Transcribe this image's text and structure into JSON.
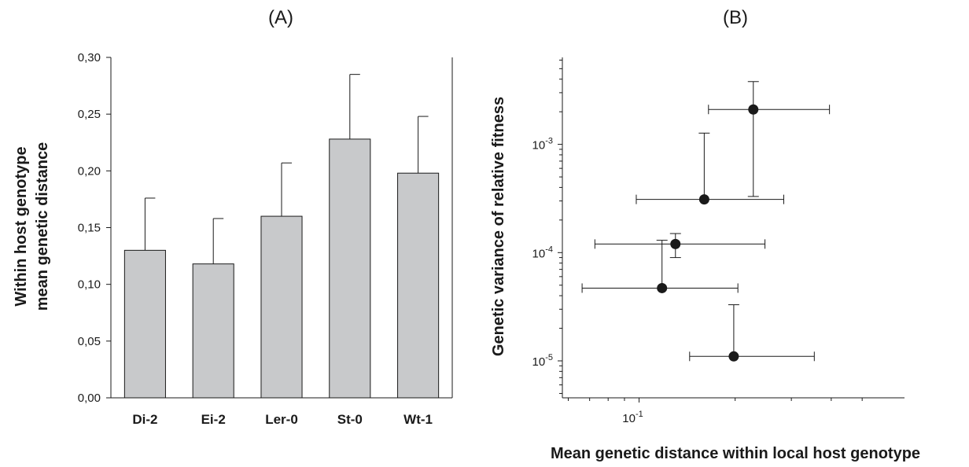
{
  "chart_data": [
    {
      "panel": "(A)",
      "type": "bar",
      "categories": [
        "Di-2",
        "Ei-2",
        "Ler-0",
        "St-0",
        "Wt-1"
      ],
      "values": [
        0.13,
        0.118,
        0.16,
        0.228,
        0.198
      ],
      "error_upper": [
        0.176,
        0.158,
        0.207,
        0.285,
        0.248
      ],
      "ylabel_lines": [
        "Within host genotype",
        "mean genetic distance"
      ],
      "ylim": [
        0,
        0.3
      ],
      "yticks": [
        0.0,
        0.05,
        0.1,
        0.15,
        0.2,
        0.25,
        0.3
      ],
      "ytick_labels": [
        "0,00",
        "0,05",
        "0,10",
        "0,15",
        "0,20",
        "0,25",
        "0,30"
      ],
      "bar_color": "#c8c9cb",
      "grid": false
    },
    {
      "panel": "(B)",
      "type": "scatter",
      "xscale": "log",
      "yscale": "log",
      "xlabel": "Mean genetic distance within local host genotype",
      "ylabel": "Genetic variance of relative fitness",
      "xtick_labels": [
        {
          "value": 0.1,
          "base": "10",
          "exp": "-1"
        }
      ],
      "ytick_labels": [
        {
          "value": 0.001,
          "base": "10",
          "exp": "-3"
        },
        {
          "value": 0.0001,
          "base": "10",
          "exp": "-4"
        },
        {
          "value": 1e-05,
          "base": "10",
          "exp": "-5"
        }
      ],
      "points": [
        {
          "x": 0.118,
          "y": 4.7e-05,
          "xerr": [
            0.0663,
            0.204
          ],
          "yerr_up": 0.00013
        },
        {
          "x": 0.13,
          "y": 0.00012,
          "xerr": [
            0.0727,
            0.248
          ],
          "yerr": [
            9e-05,
            0.00015
          ]
        },
        {
          "x": 0.16,
          "y": 0.00031,
          "xerr": [
            0.098,
            0.284
          ],
          "yerr_up": 0.00127
        },
        {
          "x": 0.198,
          "y": 1.1e-05,
          "xerr": [
            0.144,
            0.354
          ],
          "yerr_up": 3.3e-05
        },
        {
          "x": 0.228,
          "y": 0.0021,
          "xerr": [
            0.165,
            0.395
          ],
          "yerr": [
            0.00033,
            0.0038
          ]
        }
      ],
      "marker_color": "#1a1a1a",
      "grid": false
    }
  ]
}
